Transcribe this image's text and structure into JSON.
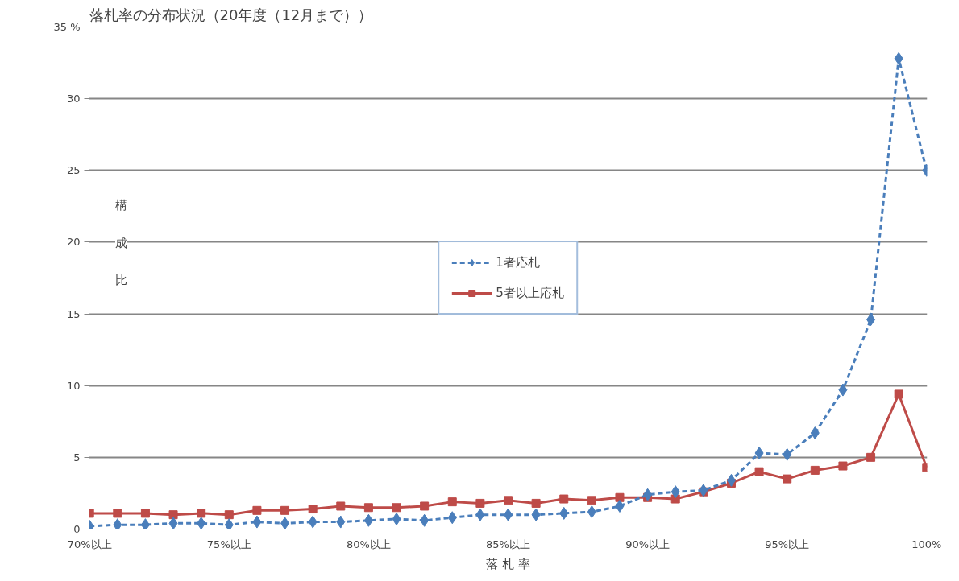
{
  "chart_data": {
    "type": "line",
    "title": "落札率の分布状況（20年度（12月まで））",
    "xlabel": "落 札 率",
    "ylabel": "構成比",
    "categories": [
      "70%以上",
      null,
      null,
      null,
      null,
      "75%以上",
      null,
      null,
      null,
      null,
      "80%以上",
      null,
      null,
      null,
      null,
      "85%以上",
      null,
      null,
      null,
      null,
      "90%以上",
      null,
      null,
      null,
      null,
      "95%以上",
      null,
      null,
      null,
      null,
      "100%"
    ],
    "series": [
      {
        "name": "1者応札",
        "color": "#4a7ebb",
        "marker": "diamond",
        "line_style": "dashed",
        "values": [
          0.2,
          0.3,
          0.3,
          0.4,
          0.4,
          0.3,
          0.5,
          0.4,
          0.5,
          0.5,
          0.6,
          0.7,
          0.6,
          0.8,
          1.0,
          1.0,
          1.0,
          1.1,
          1.2,
          1.6,
          2.4,
          2.6,
          2.7,
          3.4,
          5.3,
          5.2,
          6.7,
          9.7,
          14.6,
          32.8,
          25.0
        ]
      },
      {
        "name": "5者以上応札",
        "color": "#be4b48",
        "marker": "square",
        "line_style": "solid",
        "values": [
          1.1,
          1.1,
          1.1,
          1.0,
          1.1,
          1.0,
          1.3,
          1.3,
          1.4,
          1.6,
          1.5,
          1.5,
          1.6,
          1.9,
          1.8,
          2.0,
          1.8,
          2.1,
          2.0,
          2.2,
          2.2,
          2.1,
          2.6,
          3.2,
          4.0,
          3.5,
          4.1,
          4.4,
          5.0,
          9.4,
          4.3
        ]
      }
    ],
    "ylim": [
      0,
      35
    ],
    "yticks": [
      0,
      5,
      10,
      15,
      20,
      25,
      30,
      {
        "value": 35,
        "label": "35 %"
      }
    ],
    "grid": "y",
    "legend": "center"
  }
}
